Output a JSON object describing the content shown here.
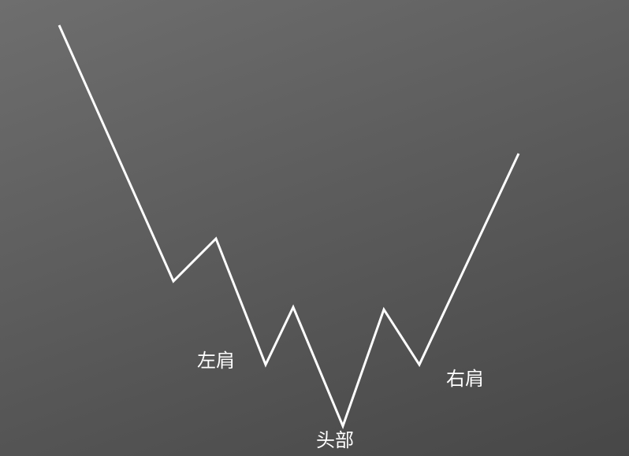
{
  "labels": {
    "left_shoulder": "左肩",
    "head": "头部",
    "right_shoulder": "右肩"
  },
  "colors": {
    "line": "#ffffff",
    "label": "#ffffff",
    "background_top": "#6e6e6e",
    "background_bottom": "#474747"
  }
}
